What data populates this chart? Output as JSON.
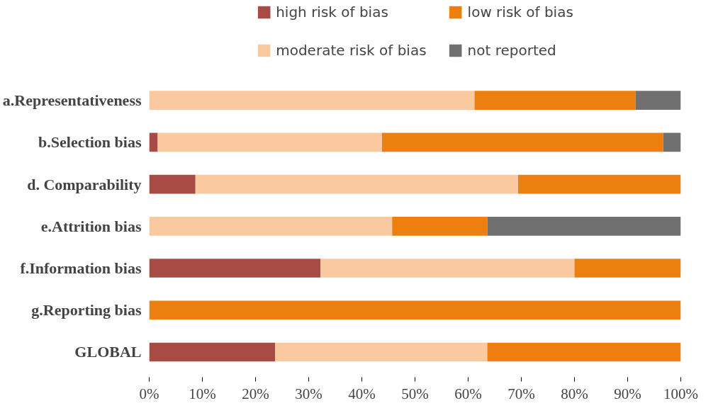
{
  "chart_data": {
    "type": "bar",
    "orientation": "horizontal",
    "stacked": true,
    "categories": [
      "a.Representativeness",
      "b.Selection bias",
      "d. Comparability",
      "e.Attrition bias",
      "f.Information bias",
      "g.Reporting bias",
      "GLOBAL"
    ],
    "series": [
      {
        "name": "high risk of bias",
        "color": "#a84b45",
        "values": [
          0,
          1.6,
          8.7,
          0,
          32.2,
          0,
          23.7
        ]
      },
      {
        "name": "moderate risk of bias",
        "color": "#fac9a0",
        "values": [
          61.2,
          42.2,
          60.7,
          45.7,
          47.8,
          0,
          39.9
        ]
      },
      {
        "name": "low risk of bias",
        "color": "#ec7f10",
        "values": [
          30.3,
          52.9,
          30.6,
          17.9,
          20,
          100,
          36.4
        ]
      },
      {
        "name": "not reported",
        "color": "#707070",
        "values": [
          8.5,
          3.3,
          0,
          36.4,
          0,
          0,
          0
        ]
      }
    ],
    "xlim": [
      0,
      100
    ],
    "xticks": [
      {
        "value": 0,
        "label": "0%"
      },
      {
        "value": 10,
        "label": "10%"
      },
      {
        "value": 20,
        "label": "20%"
      },
      {
        "value": 30,
        "label": "30%"
      },
      {
        "value": 40,
        "label": "40%"
      },
      {
        "value": 50,
        "label": "50%"
      },
      {
        "value": 60,
        "label": "60%"
      },
      {
        "value": 70,
        "label": "70%"
      },
      {
        "value": 80,
        "label": "80%"
      },
      {
        "value": 90,
        "label": "90%"
      },
      {
        "value": 100,
        "label": "100%"
      }
    ],
    "grid": false,
    "legend": "top"
  }
}
